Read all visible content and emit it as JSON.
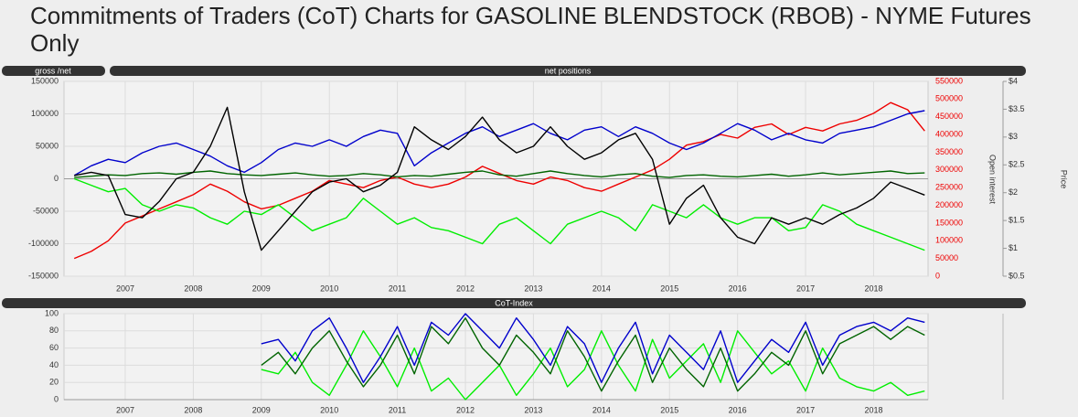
{
  "title": "Commitments of Traders (CoT) Charts for GASOLINE BLENDSTOCK (RBOB) - NYME Futures Only",
  "chart_data": [
    {
      "type": "line",
      "tab": "gross /net",
      "title": "net positions",
      "y2label": "Open interest",
      "y3label": "Price",
      "x": [
        2006.25,
        2006.5,
        2006.75,
        2007,
        2007.25,
        2007.5,
        2007.75,
        2008,
        2008.25,
        2008.5,
        2008.75,
        2009,
        2009.25,
        2009.5,
        2009.75,
        2010,
        2010.25,
        2010.5,
        2010.75,
        2011,
        2011.25,
        2011.5,
        2011.75,
        2012,
        2012.25,
        2012.5,
        2012.75,
        2013,
        2013.25,
        2013.5,
        2013.75,
        2014,
        2014.25,
        2014.5,
        2014.75,
        2015,
        2015.25,
        2015.5,
        2015.75,
        2016,
        2016.25,
        2016.5,
        2016.75,
        2017,
        2017.25,
        2017.5,
        2017.75,
        2018,
        2018.25,
        2018.5,
        2018.75
      ],
      "xlim": [
        2006.1,
        2018.8
      ],
      "xticks": [
        2007,
        2008,
        2009,
        2010,
        2011,
        2012,
        2013,
        2014,
        2015,
        2016,
        2017,
        2018
      ],
      "ylim": [
        -150000,
        150000
      ],
      "yticks": [
        -150000,
        -100000,
        -50000,
        0,
        50000,
        100000,
        150000
      ],
      "y2lim": [
        0,
        550000
      ],
      "y2ticks": [
        0,
        50000,
        100000,
        150000,
        200000,
        250000,
        300000,
        350000,
        400000,
        450000,
        500000,
        550000
      ],
      "y3lim": [
        0.5,
        4
      ],
      "y3ticks": [
        {
          "value": 0.5,
          "label": "$0.5"
        },
        {
          "value": 1,
          "label": "$1"
        },
        {
          "value": 1.5,
          "label": "$1.5"
        },
        {
          "value": 2,
          "label": "$2"
        },
        {
          "value": 2.5,
          "label": "$2.5"
        },
        {
          "value": 3,
          "label": "$3"
        },
        {
          "value": 3.5,
          "label": "$3.5"
        },
        {
          "value": 4,
          "label": "$4"
        }
      ],
      "grid": true,
      "series": [
        {
          "color": "#ee0000",
          "axis": "y2",
          "values": [
            50000,
            70000,
            100000,
            150000,
            170000,
            190000,
            210000,
            230000,
            260000,
            240000,
            210000,
            190000,
            200000,
            220000,
            240000,
            270000,
            260000,
            250000,
            270000,
            280000,
            260000,
            250000,
            260000,
            280000,
            310000,
            290000,
            270000,
            260000,
            280000,
            270000,
            250000,
            240000,
            260000,
            280000,
            300000,
            330000,
            370000,
            380000,
            400000,
            390000,
            420000,
            430000,
            400000,
            420000,
            410000,
            430000,
            440000,
            460000,
            490000,
            470000,
            410000
          ]
        },
        {
          "color": "#00ee00",
          "values": [
            0,
            -10000,
            -20000,
            -15000,
            -40000,
            -50000,
            -40000,
            -45000,
            -60000,
            -70000,
            -50000,
            -55000,
            -40000,
            -60000,
            -80000,
            -70000,
            -60000,
            -30000,
            -50000,
            -70000,
            -60000,
            -75000,
            -80000,
            -90000,
            -100000,
            -70000,
            -60000,
            -80000,
            -100000,
            -70000,
            -60000,
            -50000,
            -60000,
            -80000,
            -40000,
            -50000,
            -60000,
            -40000,
            -60000,
            -70000,
            -60000,
            -60000,
            -80000,
            -75000,
            -40000,
            -50000,
            -70000,
            -80000,
            -90000,
            -100000,
            -110000
          ]
        },
        {
          "color": "#006400",
          "values": [
            2000,
            4000,
            6000,
            5000,
            8000,
            9000,
            7000,
            10000,
            12000,
            8000,
            6000,
            5000,
            7000,
            9000,
            6000,
            4000,
            5000,
            8000,
            6000,
            3000,
            5000,
            4000,
            7000,
            10000,
            12000,
            6000,
            4000,
            8000,
            12000,
            8000,
            5000,
            3000,
            6000,
            8000,
            4000,
            2000,
            5000,
            6000,
            4000,
            3000,
            5000,
            7000,
            4000,
            6000,
            9000,
            6000,
            8000,
            10000,
            12000,
            8000,
            9000
          ]
        },
        {
          "color": "#0000cc",
          "values": [
            5000,
            20000,
            30000,
            25000,
            40000,
            50000,
            55000,
            45000,
            35000,
            20000,
            10000,
            25000,
            45000,
            55000,
            50000,
            60000,
            50000,
            65000,
            75000,
            70000,
            20000,
            40000,
            55000,
            70000,
            80000,
            65000,
            75000,
            85000,
            70000,
            60000,
            75000,
            80000,
            65000,
            80000,
            70000,
            55000,
            45000,
            55000,
            70000,
            85000,
            75000,
            60000,
            70000,
            60000,
            55000,
            70000,
            75000,
            80000,
            90000,
            100000,
            105000
          ]
        },
        {
          "color": "#000000",
          "values": [
            5000,
            10000,
            5000,
            -55000,
            -60000,
            -35000,
            0,
            10000,
            50000,
            110000,
            -20000,
            -110000,
            -80000,
            -50000,
            -20000,
            -5000,
            0,
            -20000,
            -10000,
            10000,
            80000,
            60000,
            45000,
            65000,
            95000,
            60000,
            40000,
            50000,
            80000,
            50000,
            30000,
            40000,
            60000,
            70000,
            30000,
            -70000,
            -30000,
            -10000,
            -60000,
            -90000,
            -100000,
            -60000,
            -70000,
            -60000,
            -70000,
            -55000,
            -45000,
            -30000,
            -5000,
            -15000,
            -25000
          ]
        }
      ]
    },
    {
      "type": "line",
      "title": "CoT-Index",
      "x": [
        2009,
        2009.25,
        2009.5,
        2009.75,
        2010,
        2010.25,
        2010.5,
        2010.75,
        2011,
        2011.25,
        2011.5,
        2011.75,
        2012,
        2012.25,
        2012.5,
        2012.75,
        2013,
        2013.25,
        2013.5,
        2013.75,
        2014,
        2014.25,
        2014.5,
        2014.75,
        2015,
        2015.25,
        2015.5,
        2015.75,
        2016,
        2016.25,
        2016.5,
        2016.75,
        2017,
        2017.25,
        2017.5,
        2017.75,
        2018,
        2018.25,
        2018.5,
        2018.75
      ],
      "xlim": [
        2006.1,
        2018.8
      ],
      "xticks": [
        2007,
        2008,
        2009,
        2010,
        2011,
        2012,
        2013,
        2014,
        2015,
        2016,
        2017,
        2018
      ],
      "ylim": [
        0,
        100
      ],
      "yticks": [
        0,
        20,
        40,
        60,
        80,
        100
      ],
      "grid": true,
      "series": [
        {
          "color": "#00ee00",
          "values": [
            35,
            30,
            55,
            20,
            5,
            40,
            80,
            50,
            15,
            60,
            10,
            25,
            0,
            20,
            40,
            5,
            30,
            60,
            15,
            35,
            80,
            40,
            10,
            70,
            25,
            45,
            65,
            20,
            80,
            55,
            30,
            45,
            10,
            60,
            25,
            15,
            10,
            20,
            5,
            10
          ]
        },
        {
          "color": "#006400",
          "values": [
            40,
            55,
            30,
            60,
            80,
            45,
            15,
            40,
            75,
            30,
            85,
            65,
            95,
            60,
            40,
            75,
            55,
            30,
            80,
            50,
            10,
            45,
            75,
            20,
            60,
            35,
            15,
            60,
            10,
            30,
            55,
            40,
            80,
            30,
            65,
            75,
            85,
            70,
            85,
            75
          ]
        },
        {
          "color": "#0000cc",
          "values": [
            65,
            70,
            45,
            80,
            95,
            60,
            20,
            50,
            85,
            40,
            90,
            75,
            100,
            80,
            60,
            95,
            70,
            40,
            85,
            65,
            20,
            60,
            90,
            30,
            75,
            55,
            35,
            80,
            20,
            45,
            70,
            55,
            90,
            40,
            75,
            85,
            90,
            80,
            95,
            90
          ]
        }
      ]
    }
  ]
}
